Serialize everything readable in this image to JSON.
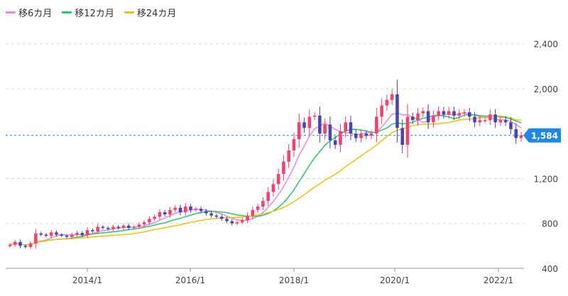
{
  "chart_data": {
    "type": "candlestick",
    "ylim": [
      400,
      2600
    ],
    "yticks": [
      400,
      800,
      1200,
      2000,
      2400
    ],
    "ytick_labels": [
      "400",
      "800",
      "1,200",
      "2,000",
      "2,400"
    ],
    "grid": true,
    "legend_position": "top-left",
    "up_color": "#ff3b6b",
    "down_color": "#4444b8",
    "x_ticks": [
      "2014/1",
      "2016/1",
      "2018/1",
      "2020/1",
      "2022/1"
    ],
    "current_price": 1584,
    "current_price_label": "1,584",
    "current_price_color": "#1e88e5",
    "series": [
      {
        "name": "移6カ月",
        "color": "#ee82ee"
      },
      {
        "name": "移12カ月",
        "color": "#22cc66"
      },
      {
        "name": "移24カ月",
        "color": "#f2c200"
      }
    ],
    "monthly_close": [
      610,
      635,
      600,
      590,
      620,
      710,
      700,
      690,
      720,
      700,
      690,
      680,
      700,
      715,
      695,
      740,
      730,
      770,
      760,
      750,
      770,
      760,
      780,
      760,
      770,
      790,
      810,
      840,
      860,
      900,
      880,
      920,
      940,
      900,
      950,
      920,
      930,
      910,
      890,
      870,
      860,
      840,
      820,
      800,
      810,
      830,
      870,
      920,
      950,
      1000,
      1080,
      1150,
      1240,
      1350,
      1450,
      1550,
      1700,
      1650,
      1750,
      1760,
      1600,
      1680,
      1540,
      1500,
      1620,
      1700,
      1600,
      1560,
      1600,
      1580,
      1600,
      1750,
      1850,
      1900,
      1950,
      1650,
      1500,
      1750,
      1720,
      1780,
      1800,
      1700,
      1760,
      1800,
      1770,
      1800,
      1760,
      1780,
      1790,
      1750,
      1700,
      1720,
      1720,
      1770,
      1700,
      1720,
      1700,
      1640,
      1560,
      1584
    ]
  }
}
